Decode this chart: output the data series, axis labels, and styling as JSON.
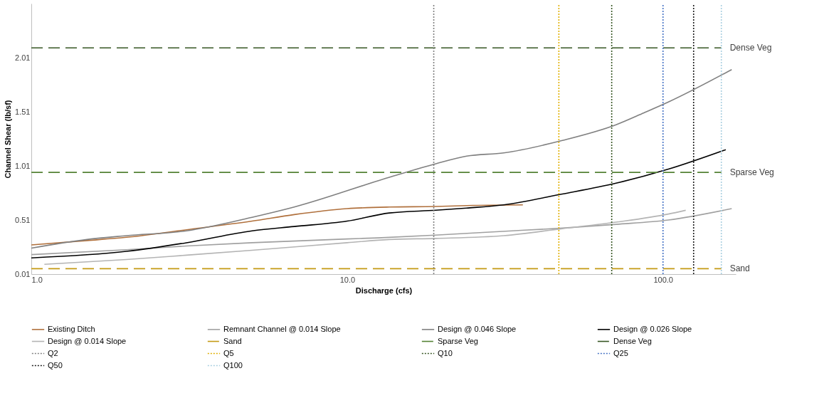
{
  "chart_data": {
    "type": "line",
    "xlabel": "Discharge (cfs)",
    "ylabel": "Channel Shear (lb/sf)",
    "log": "x",
    "xlim": [
      1,
      170
    ],
    "ylim": [
      0.01,
      2.51
    ],
    "xticks": [
      {
        "value": 1,
        "label": "1.0"
      },
      {
        "value": 10,
        "label": "10.0"
      },
      {
        "value": 100,
        "label": "100.0"
      }
    ],
    "yticks": [
      0.01,
      0.51,
      1.01,
      1.51,
      2.01
    ],
    "grid": false,
    "legend": "bottom",
    "marker": "none",
    "series": [
      {
        "name": "Existing Ditch",
        "color": "#b0703c",
        "line_style": "solid",
        "x": [
          1.0,
          1.5,
          2.0,
          3.1,
          5.0,
          6.8,
          10,
          13.6,
          19,
          25,
          36
        ],
        "values": [
          0.28,
          0.32,
          0.35,
          0.42,
          0.5,
          0.56,
          0.615,
          0.63,
          0.635,
          0.645,
          0.65
        ]
      },
      {
        "name": "Remnant Channel @ 0.014 Slope",
        "color": "#a0a0a0",
        "line_style": "solid",
        "x": [
          1.0,
          2.0,
          3.1,
          5.0,
          10,
          12.5,
          19,
          31,
          48,
          71,
          104,
          165
        ],
        "values": [
          0.19,
          0.235,
          0.27,
          0.3,
          0.335,
          0.345,
          0.37,
          0.405,
          0.435,
          0.47,
          0.51,
          0.615
        ]
      },
      {
        "name": "Design @ 0.046 Slope",
        "color": "#808080",
        "line_style": "solid",
        "x": [
          1.0,
          1.5,
          2.0,
          3.1,
          5.0,
          6.8,
          13.6,
          19.1,
          23.9,
          31.3,
          48,
          71,
          87,
          104,
          165
        ],
        "values": [
          0.25,
          0.33,
          0.365,
          0.41,
          0.535,
          0.63,
          0.905,
          1.03,
          1.1,
          1.13,
          1.245,
          1.39,
          1.5,
          1.6,
          1.9
        ]
      },
      {
        "name": "Design @ 0.026 Slope",
        "color": "#000000",
        "line_style": "solid",
        "x": [
          1.0,
          2.0,
          3.1,
          5.0,
          6.8,
          10,
          13.6,
          19.1,
          23.9,
          31.3,
          48,
          71,
          104,
          158
        ],
        "values": [
          0.16,
          0.22,
          0.3,
          0.41,
          0.45,
          0.5,
          0.575,
          0.6,
          0.62,
          0.65,
          0.75,
          0.85,
          0.98,
          1.16
        ]
      },
      {
        "name": "Design @ 0.014 Slope",
        "color": "#b4b4b4",
        "line_style": "solid",
        "x": [
          1.1,
          2.0,
          3.1,
          5.0,
          10,
          13.6,
          19.1,
          31.3,
          48,
          71,
          104,
          118
        ],
        "values": [
          0.1,
          0.145,
          0.185,
          0.23,
          0.3,
          0.33,
          0.34,
          0.365,
          0.43,
          0.49,
          0.565,
          0.6
        ]
      },
      {
        "name": "Sand",
        "color": "#c49a14",
        "line_style": "dashed",
        "x": [
          1.0,
          153
        ],
        "values": [
          0.06,
          0.06
        ]
      },
      {
        "name": "Sparse Veg",
        "color": "#548235",
        "line_style": "dashed",
        "x": [
          1.0,
          153
        ],
        "values": [
          0.95,
          0.95
        ]
      },
      {
        "name": "Dense Veg",
        "color": "#375623",
        "line_style": "dashed",
        "x": [
          1.0,
          153
        ],
        "values": [
          2.1,
          2.1
        ]
      },
      {
        "name": "Q2",
        "color": "#7f7f7f",
        "line_style": "dotted",
        "x": [
          18.8,
          18.8
        ],
        "values": [
          0.01,
          2.51
        ]
      },
      {
        "name": "Q5",
        "color": "#e0b000",
        "line_style": "dotted",
        "x": [
          46.8,
          46.8
        ],
        "values": [
          0.01,
          2.51
        ]
      },
      {
        "name": "Q10",
        "color": "#375623",
        "line_style": "dotted",
        "x": [
          68.8,
          68.8
        ],
        "values": [
          0.01,
          2.51
        ]
      },
      {
        "name": "Q25",
        "color": "#4472c4",
        "line_style": "dotted",
        "x": [
          100,
          100
        ],
        "values": [
          0.01,
          2.51
        ]
      },
      {
        "name": "Q50",
        "color": "#1a1a1a",
        "line_style": "dotted",
        "x": [
          125,
          125
        ],
        "values": [
          0.01,
          2.51
        ]
      },
      {
        "name": "Q100",
        "color": "#a9cfe0",
        "line_style": "dotted",
        "x": [
          153,
          153
        ],
        "values": [
          0.01,
          2.51
        ]
      }
    ]
  }
}
